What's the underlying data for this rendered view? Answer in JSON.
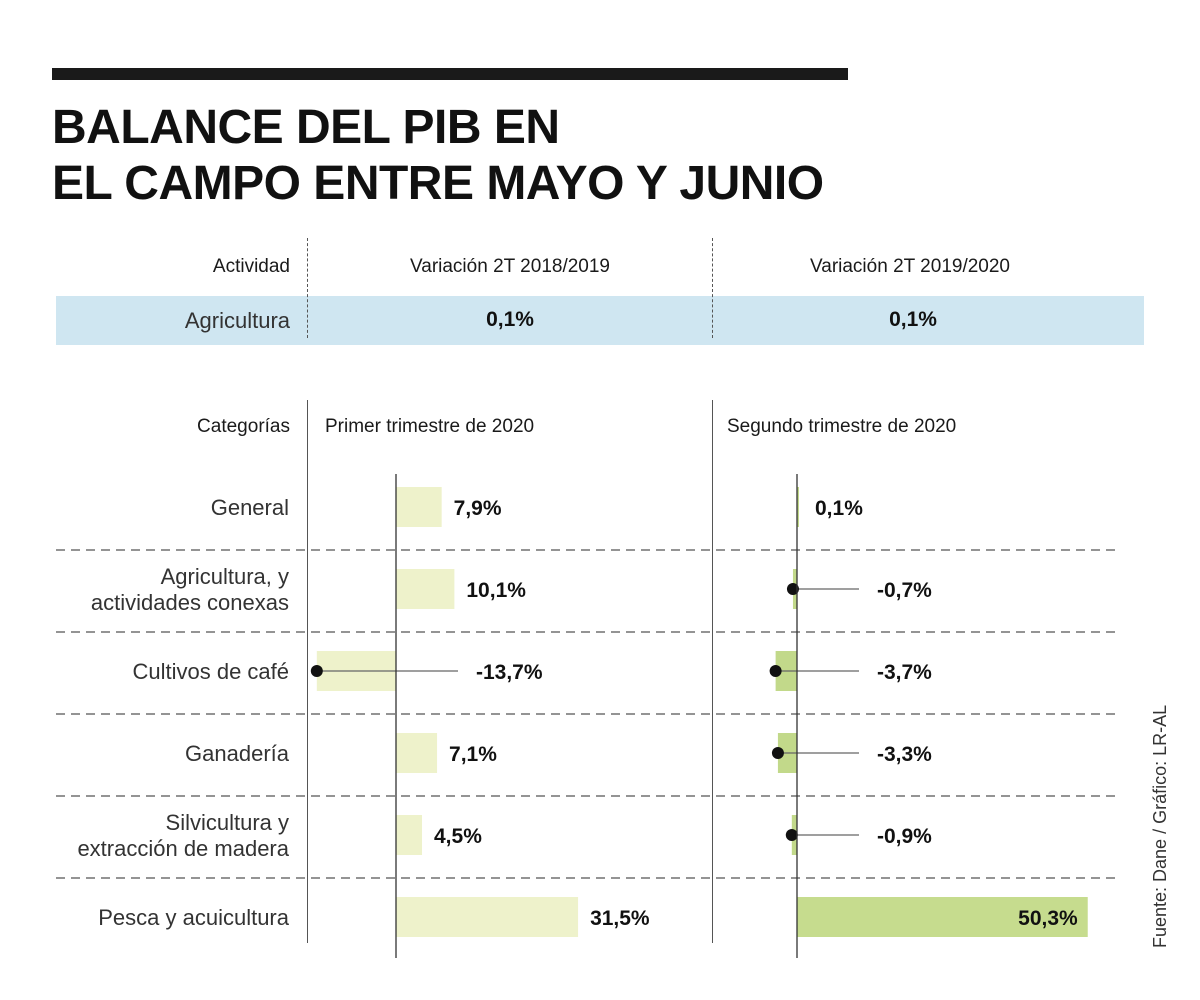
{
  "title_lines": [
    "BALANCE DEL PIB EN",
    "EL CAMPO ENTRE MAYO Y JUNIO"
  ],
  "table": {
    "headers": {
      "activity": "Actividad",
      "col1": "Variación 2T 2018/2019",
      "col2": "Variación 2T 2019/2020"
    },
    "row": {
      "activity": "Agricultura",
      "col1": "0,1%",
      "col2": "0,1%"
    }
  },
  "chart_headers": {
    "categories": "Categorías",
    "series1": "Primer trimestre de 2020",
    "series2": "Segundo trimestre de 2020"
  },
  "chart_data": {
    "type": "bar",
    "orientation": "horizontal",
    "categories": [
      [
        "General"
      ],
      [
        "Agricultura, y",
        "actividades conexas"
      ],
      [
        "Cultivos de café"
      ],
      [
        "Ganadería"
      ],
      [
        "Silvicultura y",
        "extracción de madera"
      ],
      [
        "Pesca y acuicultura"
      ]
    ],
    "series": [
      {
        "name": "Primer trimestre de 2020",
        "values": [
          7.9,
          10.1,
          -13.7,
          7.1,
          4.5,
          31.5
        ],
        "labels": [
          "7,9%",
          "10,1%",
          "-13,7%",
          "7,1%",
          "4,5%",
          "31,5%"
        ],
        "color": "#eef2cb"
      },
      {
        "name": "Segundo trimestre de 2020",
        "values": [
          0.1,
          -0.7,
          -3.7,
          -3.3,
          -0.9,
          50.3
        ],
        "labels": [
          "0,1%",
          "-0,7%",
          "-3,7%",
          "-3,3%",
          "-0,9%",
          "50,3%"
        ],
        "color": "#c6dc8e"
      }
    ]
  },
  "source": "Fuente: Dane / Gráfico: LR-AL",
  "colors": {
    "band": "#cfe6f1",
    "text": "#1a1a1a"
  }
}
